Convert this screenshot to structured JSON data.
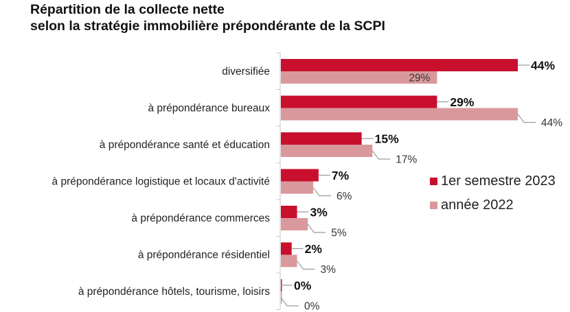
{
  "title": {
    "line1": "Répartition de la collecte nette",
    "line2": "selon la stratégie immobilière prépondérante de la SCPI"
  },
  "colors": {
    "series_2023": "#c8102e",
    "series_2022": "#d9999c",
    "axis": "#c8c8c8",
    "text": "#222222"
  },
  "legend": {
    "items": [
      {
        "label": "1er semestre 2023",
        "color": "#c8102e"
      },
      {
        "label": "année 2022",
        "color": "#d9999c"
      }
    ]
  },
  "chart_data": {
    "type": "bar",
    "orientation": "horizontal",
    "title": "Répartition de la collecte nette selon la stratégie immobilière prépondérante de la SCPI",
    "categories": [
      "diversifiée",
      "à prépondérance bureaux",
      "à prépondérance santé et éducation",
      "à prépondérance logistique et locaux d'activité",
      "à prépondérance commerces",
      "à prépondérance résidentiel",
      "à prépondérance hôtels, tourisme, loisirs"
    ],
    "series": [
      {
        "name": "1er semestre 2023",
        "values": [
          44,
          29,
          15,
          7,
          3,
          2,
          0
        ],
        "labels": [
          "44%",
          "29%",
          "15%",
          "7%",
          "3%",
          "2%",
          "0%"
        ]
      },
      {
        "name": "année 2022",
        "values": [
          29,
          44,
          17,
          6,
          5,
          3,
          0
        ],
        "labels": [
          "29%",
          "44%",
          "17%",
          "6%",
          "5%",
          "3%",
          "0%"
        ]
      }
    ],
    "xlim": [
      0,
      44
    ],
    "grid": false,
    "legend_position": "right"
  }
}
